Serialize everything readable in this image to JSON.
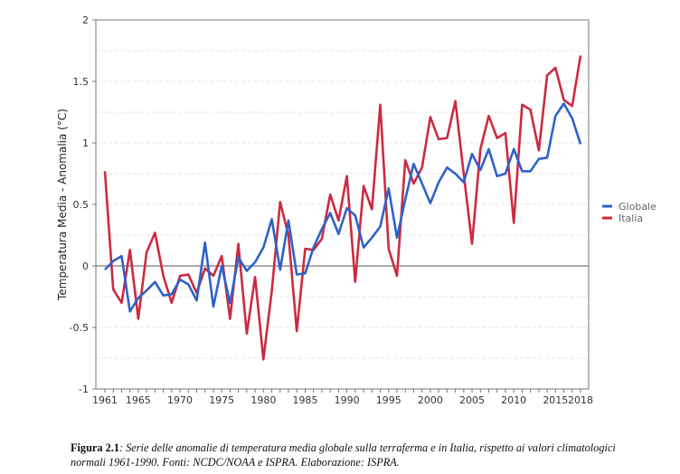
{
  "chart_data": {
    "type": "line",
    "title": "",
    "xlabel": "",
    "ylabel": "Temperatura Media - Anomalia (°C)",
    "ylim": [
      -1,
      2
    ],
    "xlim": [
      1961,
      2018
    ],
    "yticks": [
      "2",
      "1.5",
      "1",
      "0.5",
      "0",
      "-0.5",
      "-1"
    ],
    "ytick_values": [
      2,
      1.5,
      1,
      0.5,
      0,
      -0.5,
      -1
    ],
    "xtick_labels": [
      "1961",
      "1965",
      "1970",
      "1975",
      "1980",
      "1985",
      "1990",
      "1995",
      "2000",
      "2005",
      "2010",
      "2015",
      "2018"
    ],
    "grid": "horizontal dashed every 0.25",
    "legend_position": "right",
    "x": [
      1961,
      1962,
      1963,
      1964,
      1965,
      1966,
      1967,
      1968,
      1969,
      1970,
      1971,
      1972,
      1973,
      1974,
      1975,
      1976,
      1977,
      1978,
      1979,
      1980,
      1981,
      1982,
      1983,
      1984,
      1985,
      1986,
      1987,
      1988,
      1989,
      1990,
      1991,
      1992,
      1993,
      1994,
      1995,
      1996,
      1997,
      1998,
      1999,
      2000,
      2001,
      2002,
      2003,
      2004,
      2005,
      2006,
      2007,
      2008,
      2009,
      2010,
      2011,
      2012,
      2013,
      2014,
      2015,
      2016,
      2017,
      2018
    ],
    "series": [
      {
        "name": "Globale",
        "color": "#2f62c8",
        "values": [
          -0.03,
          0.04,
          0.08,
          -0.37,
          -0.26,
          -0.2,
          -0.13,
          -0.24,
          -0.23,
          -0.11,
          -0.15,
          -0.28,
          0.19,
          -0.33,
          0.0,
          -0.3,
          0.07,
          -0.04,
          0.03,
          0.15,
          0.38,
          -0.03,
          0.37,
          -0.07,
          -0.06,
          0.15,
          0.3,
          0.43,
          0.26,
          0.47,
          0.41,
          0.15,
          0.23,
          0.32,
          0.63,
          0.23,
          0.54,
          0.83,
          0.67,
          0.51,
          0.68,
          0.8,
          0.75,
          0.68,
          0.91,
          0.78,
          0.95,
          0.73,
          0.75,
          0.95,
          0.77,
          0.77,
          0.87,
          0.88,
          1.22,
          1.32,
          1.2,
          0.99
        ]
      },
      {
        "name": "Italia",
        "color": "#cc2a41",
        "values": [
          0.77,
          -0.19,
          -0.3,
          0.13,
          -0.43,
          0.11,
          0.27,
          -0.08,
          -0.3,
          -0.08,
          -0.07,
          -0.22,
          -0.02,
          -0.08,
          0.08,
          -0.43,
          0.18,
          -0.55,
          -0.09,
          -0.76,
          -0.2,
          0.52,
          0.25,
          -0.53,
          0.14,
          0.13,
          0.22,
          0.58,
          0.37,
          0.73,
          -0.13,
          0.65,
          0.46,
          1.31,
          0.14,
          -0.08,
          0.86,
          0.67,
          0.8,
          1.21,
          1.03,
          1.04,
          1.34,
          0.75,
          0.18,
          0.95,
          1.22,
          1.04,
          1.08,
          0.35,
          1.31,
          1.27,
          0.94,
          1.55,
          1.61,
          1.35,
          1.3,
          1.71
        ]
      }
    ],
    "zero_line_color": "#909090"
  },
  "caption": {
    "label": "Figura 2.1",
    "text": ": Serie delle anomalie di temperatura media globale sulla terraferma e in Italia, rispetto ai valori climatologici normali 1961-1990. Fonti: NCDC/NOAA e ISPRA. Elaborazione: ISPRA."
  }
}
